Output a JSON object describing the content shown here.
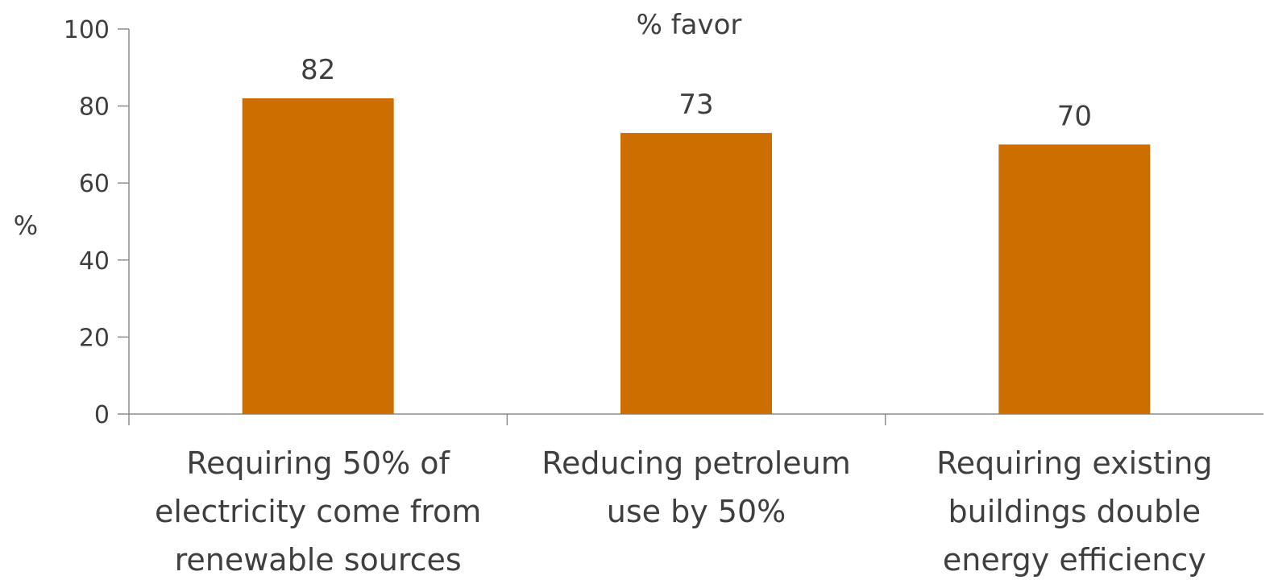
{
  "chart_data": {
    "type": "bar",
    "title": "% favor",
    "ylabel": "%",
    "xlabel": "",
    "ylim": [
      0,
      100
    ],
    "yticks": [
      0,
      20,
      40,
      60,
      80,
      100
    ],
    "grid": false,
    "categories": [
      "Requiring 50% of electricity come from renewable sources",
      "Reducing petroleum use by 50%",
      "Requiring existing buildings double energy efficiency"
    ],
    "values": [
      82,
      73,
      70
    ],
    "data_labels": [
      "82",
      "73",
      "70"
    ],
    "bar_color": "#cc6f00",
    "axis_color": "#8c8c8c"
  }
}
